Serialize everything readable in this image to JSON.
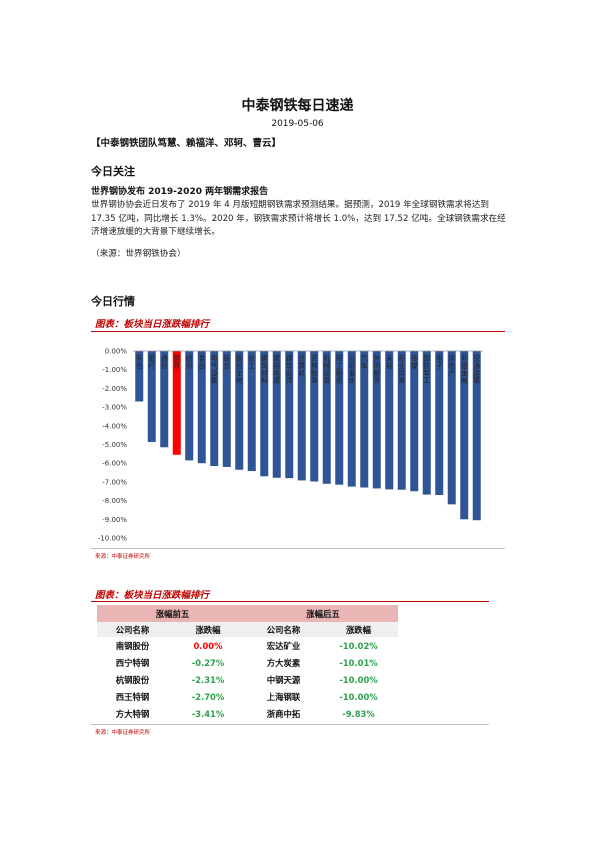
{
  "header": {
    "title": "中泰钢铁每日速递",
    "date": "2019-05-06",
    "team": "【中泰钢铁团队笃慧、赖福洋、邓轲、曹云】"
  },
  "today_focus": {
    "heading": "今日关注",
    "subheading": "世界钢协发布 2019-2020 两年钢需求报告",
    "paragraph": "世界钢协协会近日发布了 2019 年 4 月版短期钢铁需求预测结果。据预测，2019 年全球钢铁需求将达到 17.35 亿吨，同比增长 1.3%。2020 年，钢铁需求预计将增长 1.0%，达到 17.52 亿吨。全球钢铁需求在经济增速放缓的大背景下继续增长。",
    "source": "（来源：世界钢铁协会）"
  },
  "market": {
    "heading": "今日行情",
    "chart_caption": "图表：板块当日涨跌幅排行",
    "chart_source": "来源：中泰证券研究所",
    "table_caption": "图表：板块当日涨跌幅排行",
    "table_source": "来源：中泰证券研究所",
    "table": {
      "group_top": "涨幅前五",
      "group_bottom": "涨幅后五",
      "col_name": "公司名称",
      "col_change": "涨跌幅",
      "rows": [
        {
          "top_name": "南钢股份",
          "top_change": "0.00%",
          "bottom_name": "宏达矿业",
          "bottom_change": "-10.02%"
        },
        {
          "top_name": "西宁特钢",
          "top_change": "-0.27%",
          "bottom_name": "方大炭素",
          "bottom_change": "-10.01%"
        },
        {
          "top_name": "杭钢股份",
          "top_change": "-2.31%",
          "bottom_name": "中钢天源",
          "bottom_change": "-10.00%"
        },
        {
          "top_name": "西王特钢",
          "top_change": "-2.70%",
          "bottom_name": "上海钢联",
          "bottom_change": "-10.00%"
        },
        {
          "top_name": "方大特钢",
          "top_change": "-3.41%",
          "bottom_name": "浙商中拓",
          "bottom_change": "-9.83%"
        }
      ]
    }
  },
  "colors": {
    "bar": "#2f5597",
    "highlight": "#ff0000",
    "up": "#ff0000",
    "down": "#2aa34a",
    "accent": "#c00000"
  },
  "chart_data": {
    "type": "bar",
    "title": "",
    "ylim": [
      -10,
      0
    ],
    "y_ticks": [
      "0.00%",
      "-1.00%",
      "-2.00%",
      "-3.00%",
      "-4.00%",
      "-5.00%",
      "-6.00%",
      "-7.00%",
      "-8.00%",
      "-9.00%",
      "-10.00%"
    ],
    "grid": false,
    "legend": "none",
    "categories": [
      "有色",
      "银行",
      "通信",
      "钢铁",
      "纺织",
      "食品",
      "电气设备",
      "综合",
      "医药生物",
      "化工",
      "建筑材料",
      "家用电器",
      "建筑装饰",
      "计算机",
      "农林牧渔",
      "机械设备",
      "轻工制造",
      "公用事业",
      "汽车",
      "休闲服务",
      "采掘",
      "商业贸易",
      "传媒",
      "国防军工",
      "电子",
      "房地产",
      "非银金融",
      "交通运输"
    ],
    "values": [
      -2.7,
      -4.87,
      -5.15,
      -5.55,
      -5.85,
      -6.0,
      -6.15,
      -6.2,
      -6.35,
      -6.42,
      -6.7,
      -6.78,
      -6.8,
      -6.92,
      -6.98,
      -7.1,
      -7.15,
      -7.25,
      -7.3,
      -7.35,
      -7.4,
      -7.42,
      -7.5,
      -7.68,
      -7.7,
      -8.2,
      -9.0,
      -9.05
    ],
    "highlight_category": "钢铁"
  }
}
